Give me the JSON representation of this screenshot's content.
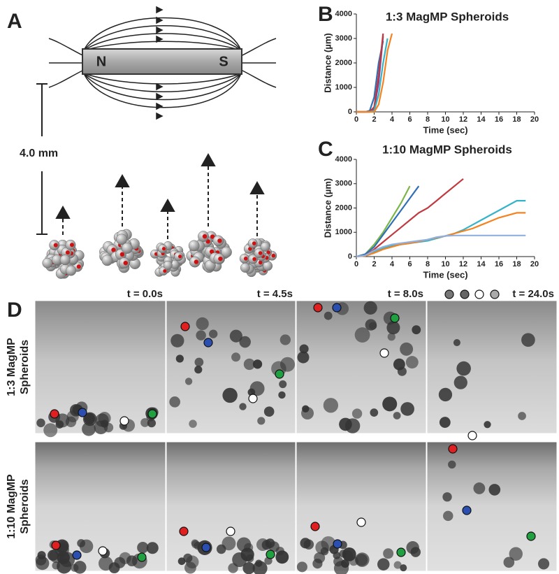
{
  "panels": {
    "a": "A",
    "b": "B",
    "c": "C",
    "d": "D"
  },
  "magnet": {
    "north": "N",
    "south": "S"
  },
  "scale_label": "4.0 mm",
  "time_labels": [
    "t = 0.0s",
    "t = 4.5s",
    "t = 8.0s",
    "t = 24.0s"
  ],
  "row_labels": [
    [
      "1:3 MagMP",
      "Spheroids"
    ],
    [
      "1:10 MagMP",
      "Spheroids"
    ]
  ],
  "chart_data": [
    {
      "type": "line",
      "title": "1:3 MagMP Spheroids",
      "x_label": "Time (sec)",
      "y_label": "Distance (µm)",
      "x": [
        0,
        0.5,
        1,
        1.5,
        2,
        2.5,
        3,
        3.5,
        4
      ],
      "xlim": [
        0,
        20
      ],
      "xticks": [
        0,
        2,
        4,
        6,
        8,
        10,
        12,
        14,
        16,
        18,
        20
      ],
      "ylim": [
        0,
        4000
      ],
      "yticks": [
        0,
        1000,
        2000,
        3000,
        4000
      ],
      "series": [
        {
          "name": "purple",
          "color": "#7a3e9d",
          "values": [
            0,
            0,
            0,
            0,
            100,
            1200,
            3100,
            null,
            null
          ]
        },
        {
          "name": "blue",
          "color": "#2f6fb5",
          "values": [
            0,
            0,
            0,
            50,
            600,
            2000,
            2900,
            null,
            null
          ]
        },
        {
          "name": "red",
          "color": "#c0393f",
          "values": [
            0,
            0,
            0,
            0,
            200,
            1500,
            3200,
            null,
            null
          ]
        },
        {
          "name": "teal",
          "color": "#35b3c8",
          "values": [
            0,
            0,
            0,
            0,
            50,
            700,
            2000,
            3000,
            null
          ]
        },
        {
          "name": "orange",
          "color": "#f58220",
          "values": [
            0,
            0,
            0,
            0,
            0,
            300,
            1200,
            2500,
            3200
          ]
        }
      ]
    },
    {
      "type": "line",
      "title": "1:10 MagMP Spheroids",
      "x_label": "Time (sec)",
      "y_label": "Distance (µm)",
      "x": [
        0,
        1,
        2,
        3,
        4,
        5,
        6,
        7,
        8,
        9,
        10,
        11,
        12,
        13,
        14,
        15,
        16,
        17,
        18,
        19
      ],
      "xlim": [
        0,
        20
      ],
      "xticks": [
        0,
        2,
        4,
        6,
        8,
        10,
        12,
        14,
        16,
        18,
        20
      ],
      "ylim": [
        0,
        4000
      ],
      "yticks": [
        0,
        1000,
        2000,
        3000,
        4000
      ],
      "series": [
        {
          "name": "green",
          "color": "#7ab648",
          "values": [
            0,
            100,
            500,
            1000,
            1600,
            2200,
            2900,
            null,
            null,
            null,
            null,
            null,
            null,
            null,
            null,
            null,
            null,
            null,
            null,
            null
          ]
        },
        {
          "name": "blue",
          "color": "#2f6fb5",
          "values": [
            0,
            100,
            400,
            900,
            1400,
            1900,
            2400,
            2900,
            null,
            null,
            null,
            null,
            null,
            null,
            null,
            null,
            null,
            null,
            null,
            null
          ]
        },
        {
          "name": "red",
          "color": "#c0393f",
          "values": [
            0,
            50,
            300,
            600,
            900,
            1200,
            1500,
            1800,
            2000,
            2300,
            2600,
            2900,
            3200,
            null,
            null,
            null,
            null,
            null,
            null,
            null
          ]
        },
        {
          "name": "teal",
          "color": "#35b3c8",
          "values": [
            0,
            50,
            200,
            350,
            450,
            500,
            550,
            600,
            650,
            750,
            850,
            950,
            1100,
            1300,
            1500,
            1700,
            1900,
            2100,
            2300,
            2300
          ]
        },
        {
          "name": "orange",
          "color": "#f58220",
          "values": [
            0,
            30,
            150,
            300,
            400,
            500,
            550,
            620,
            700,
            780,
            850,
            950,
            1050,
            1150,
            1300,
            1450,
            1600,
            1700,
            1800,
            1800
          ]
        },
        {
          "name": "light-blue",
          "color": "#8fb0e0",
          "values": [
            0,
            50,
            250,
            400,
            500,
            550,
            600,
            650,
            700,
            800,
            850,
            870,
            870,
            870,
            870,
            870,
            870,
            870,
            870,
            870
          ]
        }
      ]
    }
  ]
}
